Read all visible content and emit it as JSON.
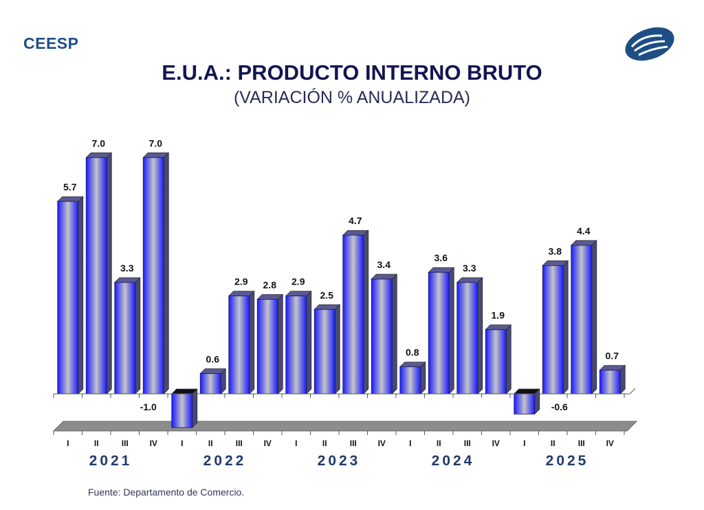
{
  "header": {
    "brand": "CEESP",
    "logo": "ceesp-logo-icon"
  },
  "footer": {
    "source": "Fuente: Departamento de Comercio."
  },
  "colors": {
    "brand": "#1f4e85",
    "title": "#141452",
    "bar_edge": "#1a1aff",
    "bar_center": "#c0c0c0",
    "bar_side": "#4a4a70",
    "floor": "#8c8c8c"
  },
  "chart_data": {
    "type": "bar",
    "title": "E.U.A.: PRODUCTO INTERNO BRUTO",
    "subtitle": "(VARIACIÓN % ANUALIZADA)",
    "xlabel": "",
    "ylabel": "",
    "grid": false,
    "legend": "none",
    "ylim": [
      -1.0,
      7.0
    ],
    "categories": [
      "I",
      "II",
      "III",
      "IV",
      "I",
      "II",
      "III",
      "IV",
      "I",
      "II",
      "III",
      "IV",
      "I",
      "II",
      "III",
      "IV",
      "I",
      "II",
      "III",
      "IV"
    ],
    "years": [
      {
        "label": "2021",
        "quarters": 4
      },
      {
        "label": "2022",
        "quarters": 4
      },
      {
        "label": "2023",
        "quarters": 4
      },
      {
        "label": "2024",
        "quarters": 4
      },
      {
        "label": "2025",
        "quarters": 4
      }
    ],
    "values": [
      5.7,
      7.0,
      3.3,
      7.0,
      -1.0,
      0.6,
      2.9,
      2.8,
      2.9,
      2.5,
      4.7,
      3.4,
      0.8,
      3.6,
      3.3,
      1.9,
      -0.6,
      3.8,
      4.4,
      0.7
    ],
    "data_labels": [
      "5.7",
      "7.0",
      "3.3",
      "7.0",
      "-1.0",
      "0.6",
      "2.9",
      "2.8",
      "2.9",
      "2.5",
      "4.7",
      "3.4",
      "0.8",
      "3.6",
      "3.3",
      "1.9",
      "-0.6",
      "3.8",
      "4.4",
      "0.7"
    ]
  }
}
